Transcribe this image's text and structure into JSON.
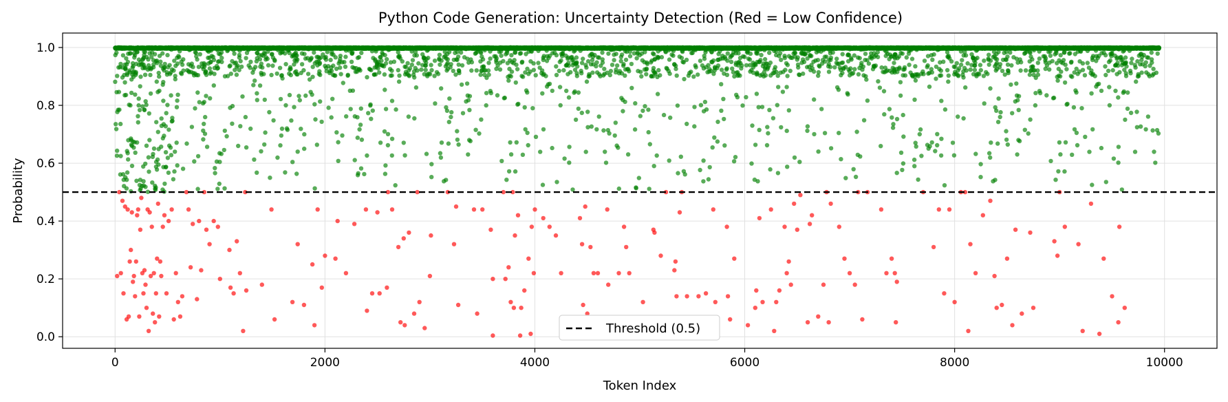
{
  "chart_data": {
    "type": "scatter",
    "title": "Python Code Generation: Uncertainty Detection (Red = Low Confidence)",
    "xlabel": "Token Index",
    "ylabel": "Probability",
    "xlim": [
      -500,
      10500
    ],
    "ylim": [
      -0.04,
      1.05
    ],
    "xticks": [
      0,
      2000,
      4000,
      6000,
      8000,
      10000
    ],
    "xtick_labels": [
      "0",
      "2000",
      "4000",
      "6000",
      "8000",
      "10000"
    ],
    "yticks": [
      0.0,
      0.2,
      0.4,
      0.6,
      0.8,
      1.0
    ],
    "ytick_labels": [
      "0.0",
      "0.2",
      "0.4",
      "0.6",
      "0.8",
      "1.0"
    ],
    "grid": true,
    "threshold": 0.5,
    "legend": {
      "position": "bottom-center",
      "entries": [
        "Threshold (0.5)"
      ]
    },
    "colors": {
      "high": "#008000",
      "low": "#ff0000",
      "threshold": "#000000"
    },
    "token_count": 9950,
    "low_confidence_points": [
      [
        20,
        0.21
      ],
      [
        40,
        0.5
      ],
      [
        55,
        0.22
      ],
      [
        70,
        0.47
      ],
      [
        80,
        0.15
      ],
      [
        95,
        0.45
      ],
      [
        110,
        0.06
      ],
      [
        120,
        0.44
      ],
      [
        130,
        0.07
      ],
      [
        140,
        0.26
      ],
      [
        150,
        0.3
      ],
      [
        160,
        0.43
      ],
      [
        170,
        0.19
      ],
      [
        180,
        0.21
      ],
      [
        190,
        0.14
      ],
      [
        200,
        0.26
      ],
      [
        210,
        0.42
      ],
      [
        220,
        0.44
      ],
      [
        230,
        0.07
      ],
      [
        240,
        0.37
      ],
      [
        250,
        0.48
      ],
      [
        260,
        0.22
      ],
      [
        270,
        0.15
      ],
      [
        280,
        0.23
      ],
      [
        290,
        0.18
      ],
      [
        300,
        0.1
      ],
      [
        310,
        0.44
      ],
      [
        320,
        0.02
      ],
      [
        330,
        0.43
      ],
      [
        340,
        0.21
      ],
      [
        350,
        0.38
      ],
      [
        360,
        0.08
      ],
      [
        370,
        0.22
      ],
      [
        380,
        0.05
      ],
      [
        390,
        0.15
      ],
      [
        400,
        0.27
      ],
      [
        410,
        0.46
      ],
      [
        420,
        0.07
      ],
      [
        430,
        0.26
      ],
      [
        440,
        0.21
      ],
      [
        455,
        0.38
      ],
      [
        470,
        0.42
      ],
      [
        490,
        0.15
      ],
      [
        510,
        0.4
      ],
      [
        540,
        0.44
      ],
      [
        560,
        0.06
      ],
      [
        580,
        0.22
      ],
      [
        600,
        0.12
      ],
      [
        620,
        0.07
      ],
      [
        640,
        0.14
      ],
      [
        680,
        0.5
      ],
      [
        700,
        0.44
      ],
      [
        720,
        0.24
      ],
      [
        740,
        0.39
      ],
      [
        780,
        0.13
      ],
      [
        800,
        0.4
      ],
      [
        820,
        0.23
      ],
      [
        850,
        0.5
      ],
      [
        870,
        0.37
      ],
      [
        900,
        0.32
      ],
      [
        940,
        0.4
      ],
      [
        980,
        0.38
      ],
      [
        1000,
        0.2
      ],
      [
        1090,
        0.3
      ],
      [
        1100,
        0.17
      ],
      [
        1130,
        0.15
      ],
      [
        1160,
        0.33
      ],
      [
        1190,
        0.22
      ],
      [
        1220,
        0.02
      ],
      [
        1240,
        0.5
      ],
      [
        1250,
        0.16
      ],
      [
        1400,
        0.18
      ],
      [
        1490,
        0.44
      ],
      [
        1520,
        0.06
      ],
      [
        1690,
        0.12
      ],
      [
        1740,
        0.32
      ],
      [
        1800,
        0.11
      ],
      [
        1880,
        0.25
      ],
      [
        1900,
        0.04
      ],
      [
        1930,
        0.44
      ],
      [
        1970,
        0.17
      ],
      [
        2000,
        0.28
      ],
      [
        2100,
        0.27
      ],
      [
        2120,
        0.4
      ],
      [
        2200,
        0.22
      ],
      [
        2280,
        0.39
      ],
      [
        2390,
        0.44
      ],
      [
        2400,
        0.09
      ],
      [
        2450,
        0.15
      ],
      [
        2500,
        0.43
      ],
      [
        2520,
        0.15
      ],
      [
        2590,
        0.17
      ],
      [
        2600,
        0.5
      ],
      [
        2640,
        0.44
      ],
      [
        2700,
        0.31
      ],
      [
        2720,
        0.05
      ],
      [
        2750,
        0.34
      ],
      [
        2760,
        0.04
      ],
      [
        2800,
        0.36
      ],
      [
        2850,
        0.08
      ],
      [
        2880,
        0.5
      ],
      [
        2900,
        0.12
      ],
      [
        2950,
        0.03
      ],
      [
        3000,
        0.21
      ],
      [
        3010,
        0.35
      ],
      [
        3170,
        0.5
      ],
      [
        3230,
        0.32
      ],
      [
        3250,
        0.45
      ],
      [
        3270,
        0.11
      ],
      [
        3420,
        0.44
      ],
      [
        3450,
        0.08
      ],
      [
        3500,
        0.44
      ],
      [
        3580,
        0.37
      ],
      [
        3600,
        0.2
      ],
      [
        3600,
        0.004
      ],
      [
        3700,
        0.5
      ],
      [
        3720,
        0.2
      ],
      [
        3750,
        0.24
      ],
      [
        3770,
        0.12
      ],
      [
        3790,
        0.5
      ],
      [
        3800,
        0.1
      ],
      [
        3810,
        0.35
      ],
      [
        3840,
        0.42
      ],
      [
        3860,
        0.004
      ],
      [
        3870,
        0.1
      ],
      [
        3900,
        0.16
      ],
      [
        3940,
        0.27
      ],
      [
        3960,
        0.01
      ],
      [
        3970,
        0.38
      ],
      [
        3990,
        0.22
      ],
      [
        4000,
        0.44
      ],
      [
        4080,
        0.41
      ],
      [
        4140,
        0.38
      ],
      [
        4200,
        0.35
      ],
      [
        4250,
        0.22
      ],
      [
        4430,
        0.41
      ],
      [
        4450,
        0.32
      ],
      [
        4460,
        0.11
      ],
      [
        4480,
        0.45
      ],
      [
        4500,
        0.08
      ],
      [
        4530,
        0.31
      ],
      [
        4560,
        0.22
      ],
      [
        4600,
        0.22
      ],
      [
        4690,
        0.44
      ],
      [
        4700,
        0.18
      ],
      [
        4800,
        0.22
      ],
      [
        4850,
        0.38
      ],
      [
        4870,
        0.31
      ],
      [
        4900,
        0.22
      ],
      [
        5030,
        0.12
      ],
      [
        5130,
        0.37
      ],
      [
        5140,
        0.36
      ],
      [
        5200,
        0.28
      ],
      [
        5250,
        0.5
      ],
      [
        5330,
        0.23
      ],
      [
        5340,
        0.26
      ],
      [
        5350,
        0.14
      ],
      [
        5380,
        0.43
      ],
      [
        5400,
        0.5
      ],
      [
        5450,
        0.14
      ],
      [
        5500,
        0.06
      ],
      [
        5530,
        0.06
      ],
      [
        5560,
        0.14
      ],
      [
        5630,
        0.15
      ],
      [
        5700,
        0.44
      ],
      [
        5720,
        0.12
      ],
      [
        5830,
        0.38
      ],
      [
        5840,
        0.14
      ],
      [
        5860,
        0.06
      ],
      [
        5900,
        0.27
      ],
      [
        6030,
        0.04
      ],
      [
        6100,
        0.1
      ],
      [
        6110,
        0.16
      ],
      [
        6140,
        0.41
      ],
      [
        6170,
        0.12
      ],
      [
        6250,
        0.44
      ],
      [
        6280,
        0.02
      ],
      [
        6300,
        0.12
      ],
      [
        6330,
        0.16
      ],
      [
        6380,
        0.38
      ],
      [
        6400,
        0.22
      ],
      [
        6420,
        0.26
      ],
      [
        6440,
        0.18
      ],
      [
        6470,
        0.46
      ],
      [
        6500,
        0.37
      ],
      [
        6530,
        0.49
      ],
      [
        6600,
        0.05
      ],
      [
        6620,
        0.39
      ],
      [
        6640,
        0.42
      ],
      [
        6700,
        0.07
      ],
      [
        6750,
        0.18
      ],
      [
        6780,
        0.5
      ],
      [
        6800,
        0.05
      ],
      [
        6820,
        0.46
      ],
      [
        6900,
        0.38
      ],
      [
        6950,
        0.27
      ],
      [
        7000,
        0.22
      ],
      [
        7050,
        0.18
      ],
      [
        7080,
        0.5
      ],
      [
        7120,
        0.06
      ],
      [
        7170,
        0.5
      ],
      [
        7300,
        0.44
      ],
      [
        7350,
        0.22
      ],
      [
        7400,
        0.27
      ],
      [
        7430,
        0.22
      ],
      [
        7440,
        0.05
      ],
      [
        7450,
        0.19
      ],
      [
        7700,
        0.5
      ],
      [
        7800,
        0.31
      ],
      [
        7850,
        0.44
      ],
      [
        7900,
        0.15
      ],
      [
        7950,
        0.44
      ],
      [
        8000,
        0.12
      ],
      [
        8060,
        0.5
      ],
      [
        8100,
        0.5
      ],
      [
        8130,
        0.02
      ],
      [
        8150,
        0.32
      ],
      [
        8200,
        0.22
      ],
      [
        8270,
        0.42
      ],
      [
        8340,
        0.47
      ],
      [
        8380,
        0.21
      ],
      [
        8400,
        0.1
      ],
      [
        8450,
        0.11
      ],
      [
        8500,
        0.27
      ],
      [
        8550,
        0.04
      ],
      [
        8580,
        0.37
      ],
      [
        8640,
        0.08
      ],
      [
        8720,
        0.36
      ],
      [
        8750,
        0.1
      ],
      [
        8950,
        0.33
      ],
      [
        8980,
        0.28
      ],
      [
        9000,
        0.5
      ],
      [
        9050,
        0.38
      ],
      [
        9180,
        0.32
      ],
      [
        9220,
        0.02
      ],
      [
        9300,
        0.46
      ],
      [
        9380,
        0.01
      ],
      [
        9420,
        0.27
      ],
      [
        9500,
        0.14
      ],
      [
        9560,
        0.05
      ],
      [
        9570,
        0.38
      ],
      [
        9620,
        0.1
      ]
    ]
  }
}
